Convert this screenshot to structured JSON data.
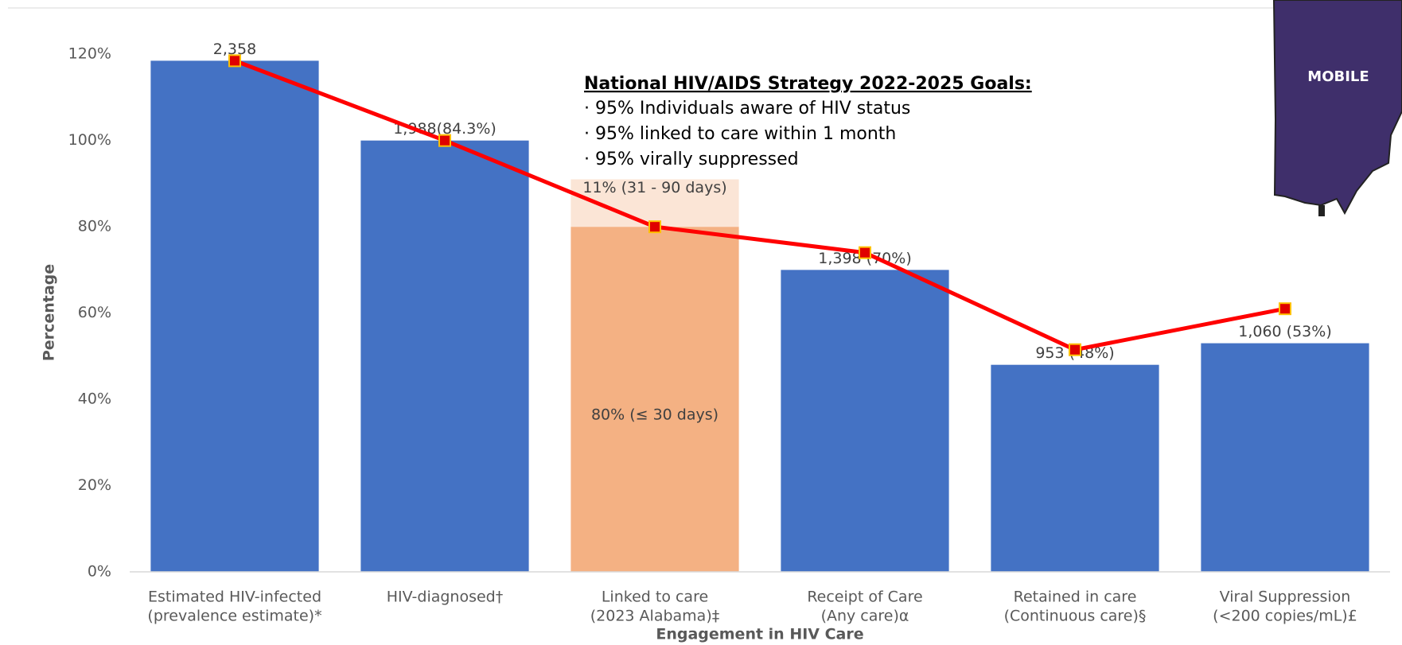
{
  "chart_data": {
    "type": "bar",
    "y_axis_label": "Percentage",
    "x_axis_label": "Engagement in HIV Care",
    "categories": [
      [
        "Estimated HIV-infected",
        "(prevalence estimate)*"
      ],
      [
        "HIV-diagnosed†"
      ],
      [
        "Linked to care",
        "(2023 Alabama)‡"
      ],
      [
        "Receipt of Care",
        "(Any care)α"
      ],
      [
        "Retained in care",
        "(Continuous care)§"
      ],
      [
        "Viral Suppression",
        "(<200 copies/mL)£"
      ]
    ],
    "series": [
      {
        "color": "#4472c4",
        "values": [
          118.5,
          100,
          null,
          70,
          48,
          53
        ]
      },
      {
        "color": "#f4b183",
        "values": [
          null,
          null,
          80,
          null,
          null,
          null
        ],
        "value_labels": [
          null,
          null,
          "80% (≤ 30 days)",
          null,
          null,
          null
        ]
      },
      {
        "color": "#fbe5d6",
        "values": [
          null,
          null,
          11,
          null,
          null,
          null
        ],
        "value_labels": [
          null,
          null,
          "11% (31 - 90 days)",
          null,
          null,
          null
        ]
      }
    ],
    "count_labels": [
      "2,358",
      "1,988(84.3%)",
      null,
      "1,398 (70%)",
      "953 (48%)",
      "1,060 (53%)"
    ],
    "line": {
      "color": "#ff0000",
      "marker_color": "#e00000",
      "marker_edge": "#ffc000",
      "values": [
        118.5,
        100,
        80,
        74,
        51.5,
        61
      ]
    },
    "ylim": [
      0,
      130
    ],
    "yticks": [
      {
        "value": 0,
        "label": "0%"
      },
      {
        "value": 20,
        "label": "20%"
      },
      {
        "value": 40,
        "label": "40%"
      },
      {
        "value": 60,
        "label": "60%"
      },
      {
        "value": 80,
        "label": "80%"
      },
      {
        "value": 100,
        "label": "100%"
      },
      {
        "value": 120,
        "label": "120%"
      }
    ],
    "grid": false,
    "annotation": {
      "title": "National HIV/AIDS Strategy 2022-2025 Goals:",
      "bullets": [
        "· 95% Individuals aware of HIV status",
        "· 95% linked to care within 1 month",
        "· 95% virally suppressed"
      ]
    },
    "map_label": "MOBILE"
  }
}
